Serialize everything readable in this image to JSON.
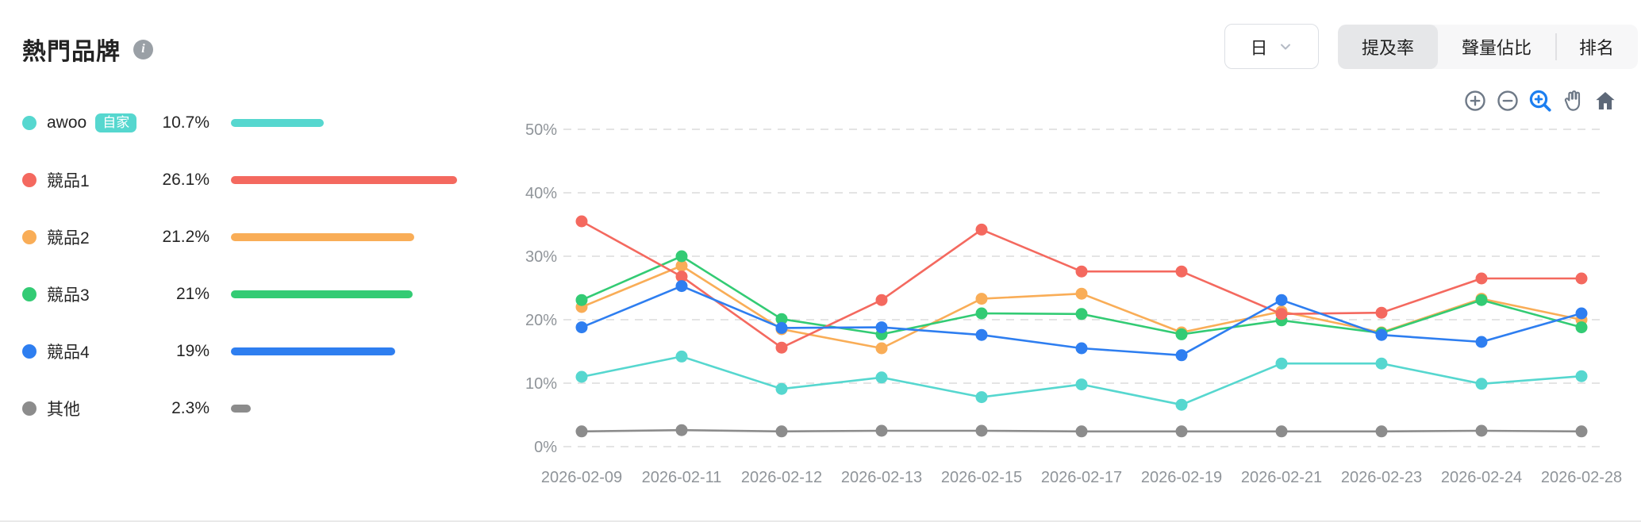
{
  "page": {
    "title": "熱門品牌",
    "info_tooltip_icon": "i"
  },
  "controls": {
    "period_select": {
      "value": "日"
    },
    "tabs": [
      {
        "label": "提及率",
        "active": true
      },
      {
        "label": "聲量佔比",
        "active": false
      },
      {
        "label": "排名",
        "active": false
      }
    ],
    "chart_toolbar_icons": [
      "zoom-in-icon",
      "zoom-out-icon",
      "box-zoom-icon",
      "pan-hand-icon",
      "reset-home-icon"
    ],
    "chart_toolbar_active": "box-zoom-icon"
  },
  "legend": {
    "max_value": 26.1,
    "items": [
      {
        "label": "awoo",
        "badge": "自家",
        "value": "10.7%",
        "pct": 10.7,
        "color": "#56d7cf"
      },
      {
        "label": "競品1",
        "badge": null,
        "value": "26.1%",
        "pct": 26.1,
        "color": "#f4695f"
      },
      {
        "label": "競品2",
        "badge": null,
        "value": "21.2%",
        "pct": 21.2,
        "color": "#f9ad57"
      },
      {
        "label": "競品3",
        "badge": null,
        "value": "21%",
        "pct": 21.0,
        "color": "#33cb74"
      },
      {
        "label": "競品4",
        "badge": null,
        "value": "19%",
        "pct": 19.0,
        "color": "#2e7ef0"
      },
      {
        "label": "其他",
        "badge": null,
        "value": "2.3%",
        "pct": 2.3,
        "color": "#8c8c8c"
      }
    ]
  },
  "chart_data": {
    "type": "line",
    "x": [
      "2026-02-09",
      "2026-02-11",
      "2026-02-12",
      "2026-02-13",
      "2026-02-15",
      "2026-02-17",
      "2026-02-19",
      "2026-02-21",
      "2026-02-23",
      "2026-02-24",
      "2026-02-28"
    ],
    "series": [
      {
        "name": "awoo",
        "color": "#56d7cf",
        "values": [
          11.0,
          14.2,
          9.1,
          10.9,
          7.8,
          9.8,
          6.6,
          13.1,
          13.1,
          9.9,
          11.1
        ]
      },
      {
        "name": "競品1",
        "color": "#f4695f",
        "values": [
          35.5,
          26.8,
          15.6,
          23.1,
          34.2,
          27.6,
          27.6,
          20.9,
          21.1,
          26.5,
          26.5
        ]
      },
      {
        "name": "競品2",
        "color": "#f9ad57",
        "values": [
          22.0,
          28.5,
          18.5,
          15.5,
          23.3,
          24.1,
          18.0,
          21.3,
          18.0,
          23.3,
          20.0
        ]
      },
      {
        "name": "競品3",
        "color": "#33cb74",
        "values": [
          23.1,
          30.0,
          20.1,
          17.7,
          21.0,
          20.9,
          17.7,
          19.9,
          17.9,
          23.1,
          18.8
        ]
      },
      {
        "name": "競品4",
        "color": "#2e7ef0",
        "values": [
          18.8,
          25.3,
          18.7,
          18.8,
          17.6,
          15.5,
          14.4,
          23.1,
          17.6,
          16.5,
          21.0
        ]
      },
      {
        "name": "其他",
        "color": "#8c8c8c",
        "values": [
          2.4,
          2.6,
          2.4,
          2.5,
          2.5,
          2.4,
          2.4,
          2.4,
          2.4,
          2.5,
          2.4
        ]
      }
    ],
    "title": "熱門品牌 提及率 (日)",
    "xlabel": "",
    "ylabel": "",
    "y_ticks": [
      "0%",
      "10%",
      "20%",
      "30%",
      "40%",
      "50%"
    ],
    "ylim": [
      0,
      50
    ],
    "grid": "horizontal-dashed",
    "legend_position": "left"
  }
}
